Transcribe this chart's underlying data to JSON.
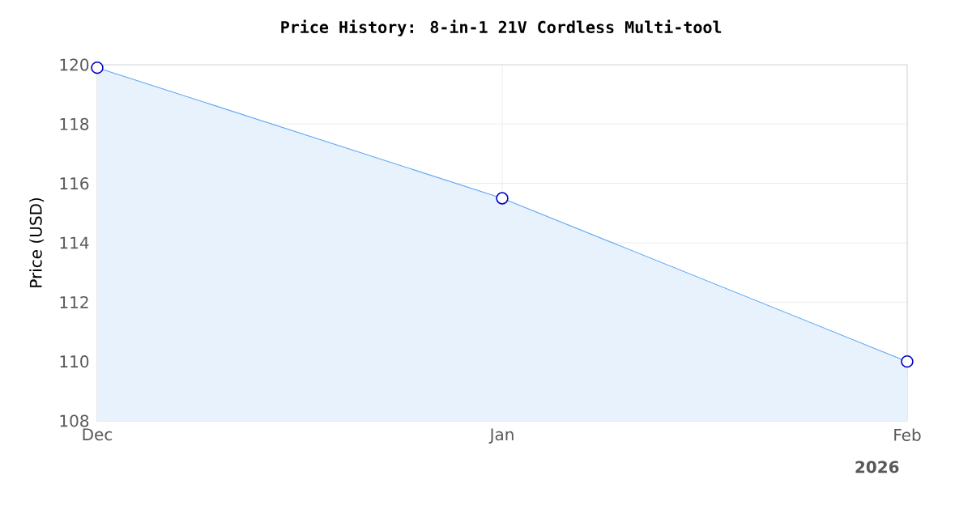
{
  "chart_data": {
    "type": "area",
    "title": "Price History: 8-in-1 21V Cordless Multi-tool",
    "ylabel": "Price (USD)",
    "x": [
      "2025-12-01",
      "2026-01-01",
      "2026-02-01"
    ],
    "series": [
      {
        "color": "#5ba4f2",
        "values": [
          119.9,
          115.5,
          110.0
        ]
      }
    ],
    "xlim": [
      "2025-12-01",
      "2026-02-01"
    ],
    "xticks": [
      {
        "value": "2025-12-01",
        "label": "Dec"
      },
      {
        "value": "2026-01-01",
        "label": "Jan"
      },
      {
        "value": "2026-02-01",
        "label": "Feb"
      }
    ],
    "ylim": [
      108,
      120
    ],
    "yticks": [
      108,
      110,
      112,
      114,
      116,
      118,
      120
    ],
    "annotations": [
      "2026"
    ],
    "grid": true,
    "marker": "circle"
  }
}
